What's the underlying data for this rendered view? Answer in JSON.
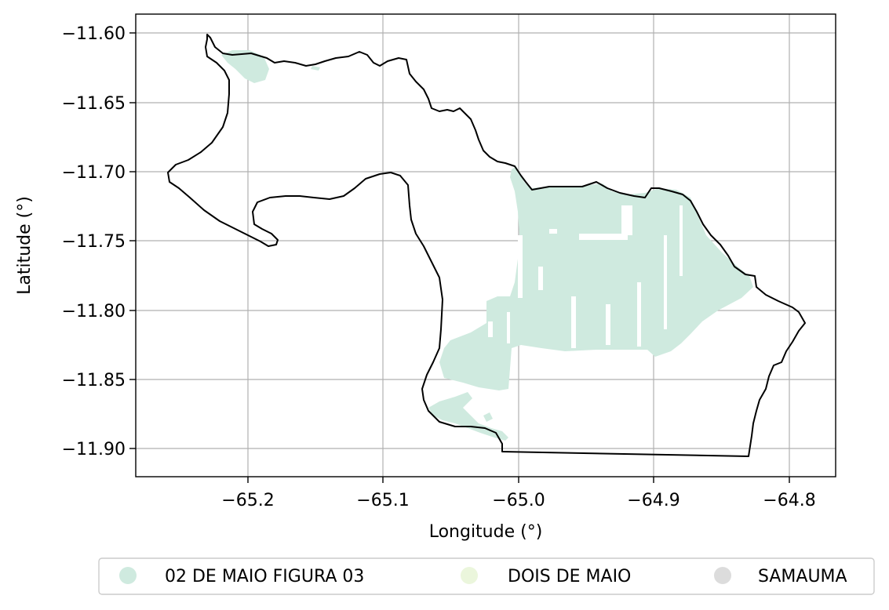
{
  "map": {
    "x_axis": {
      "label": "Longitude (°)",
      "ticks": [
        {
          "value": -65.2,
          "label": "−65.2"
        },
        {
          "value": -65.1,
          "label": "−65.1"
        },
        {
          "value": -65.0,
          "label": "−65.0"
        },
        {
          "value": -64.9,
          "label": "−64.9"
        },
        {
          "value": -64.8,
          "label": "−64.8"
        }
      ],
      "range": [
        -65.283,
        -64.766
      ]
    },
    "y_axis": {
      "label": "Latitude (°)",
      "ticks": [
        {
          "value": -11.6,
          "label": "−11.60"
        },
        {
          "value": -11.65,
          "label": "−11.65"
        },
        {
          "value": -11.7,
          "label": "−11.70"
        },
        {
          "value": -11.75,
          "label": "−11.75"
        },
        {
          "value": -11.8,
          "label": "−11.80"
        },
        {
          "value": -11.85,
          "label": "−11.85"
        },
        {
          "value": -11.9,
          "label": "−11.90"
        }
      ],
      "range": [
        -11.921,
        -11.586
      ]
    },
    "grid": true,
    "legend": {
      "placement": "bottom",
      "items": [
        {
          "label": "02 DE MAIO FIGURA 03",
          "color": "#cfeadf"
        },
        {
          "label": "DOIS DE MAIO",
          "color": "#ebf6dc"
        },
        {
          "label": "SAMAUMA",
          "color": "#dcdcdc"
        }
      ]
    },
    "colors": {
      "boundary": "#000000",
      "fill_main": "#cfeadf"
    }
  }
}
